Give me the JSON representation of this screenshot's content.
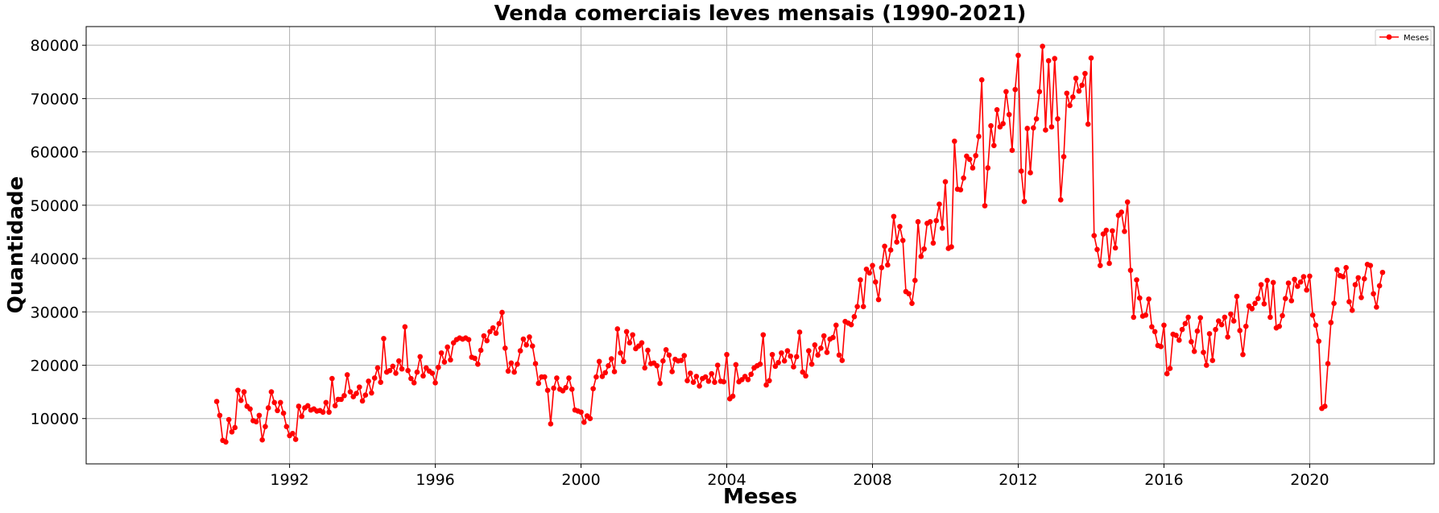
{
  "chart_data": {
    "type": "line",
    "title": "Venda comerciais leves mensais (1990-2021)",
    "xlabel": "Meses",
    "ylabel": "Quantidade",
    "x_tick_labels": [
      "1992",
      "1996",
      "2000",
      "2004",
      "2008",
      "2012",
      "2016",
      "2020"
    ],
    "y_tick_labels": [
      "10000",
      "20000",
      "30000",
      "40000",
      "50000",
      "60000",
      "70000",
      "80000"
    ],
    "x_range": [
      "1986-06",
      "2023-06"
    ],
    "ylim": [
      1500,
      83500
    ],
    "grid": true,
    "legend_position": "top-right",
    "marker": "circle",
    "line_color": "#ff0000",
    "series": [
      {
        "name": "Meses",
        "start": "1990-01",
        "frequency": "monthly",
        "values": [
          13200,
          10600,
          5900,
          5600,
          9800,
          7500,
          8300,
          15300,
          13400,
          15000,
          12300,
          11800,
          9600,
          9400,
          10600,
          6000,
          8500,
          12000,
          15000,
          13000,
          11500,
          13000,
          11000,
          8500,
          6800,
          7200,
          6100,
          12300,
          10400,
          12000,
          12400,
          11600,
          11800,
          11400,
          11500,
          11200,
          13000,
          11200,
          17500,
          12400,
          13600,
          13600,
          14300,
          18200,
          15000,
          14100,
          14700,
          15900,
          13300,
          14400,
          17000,
          14800,
          17600,
          19500,
          16800,
          25000,
          18700,
          19000,
          19800,
          18500,
          20800,
          19300,
          27200,
          19000,
          17500,
          16700,
          18700,
          21600,
          18000,
          19500,
          18900,
          18500,
          16700,
          19600,
          22300,
          20600,
          23400,
          21000,
          24200,
          24800,
          25100,
          24900,
          25100,
          24800,
          21500,
          21300,
          20200,
          22800,
          25500,
          24600,
          26300,
          27000,
          26000,
          27800,
          29900,
          23200,
          18900,
          20400,
          18700,
          20200,
          22700,
          24900,
          23800,
          25300,
          23600,
          20300,
          16600,
          17800,
          17800,
          15300,
          9000,
          15700,
          17600,
          15500,
          15200,
          15800,
          17600,
          15500,
          11600,
          11400,
          11200,
          9300,
          10500,
          10000,
          15600,
          17800,
          20700,
          17900,
          18600,
          19900,
          21200,
          18800,
          26800,
          22300,
          20700,
          26300,
          24200,
          25700,
          23100,
          23600,
          24200,
          19500,
          22800,
          20300,
          20400,
          19900,
          16600,
          20800,
          22900,
          21900,
          18800,
          21100,
          20800,
          20900,
          21800,
          17100,
          18500,
          16800,
          17900,
          16100,
          17500,
          17800,
          17000,
          18400,
          16800,
          20000,
          17000,
          16900,
          22000,
          13700,
          14200,
          20100,
          16900,
          17300,
          17900,
          17300,
          18300,
          19500,
          19900,
          20200,
          25700,
          16300,
          17100,
          22000,
          19800,
          20500,
          22300,
          20800,
          22700,
          21700,
          19700,
          21600,
          26200,
          18700,
          18000,
          22700,
          20200,
          23800,
          21900,
          23200,
          25500,
          22400,
          24900,
          25200,
          27500,
          21900,
          20900,
          28200,
          27900,
          27600,
          29100,
          31000,
          36000,
          31000,
          38000,
          37300,
          38700,
          35600,
          32300,
          38300,
          42300,
          38800,
          41600,
          47900,
          43100,
          46000,
          43400,
          33800,
          33400,
          31600,
          35900,
          46900,
          40400,
          41800,
          46600,
          46900,
          42900,
          47100,
          50200,
          45700,
          54400,
          41900,
          42200,
          62000,
          53000,
          52900,
          55100,
          59200,
          58600,
          57000,
          59300,
          62900,
          73500,
          49900,
          57000,
          64900,
          61200,
          67900,
          64700,
          65300,
          71300,
          67000,
          60300,
          71700,
          78100,
          56400,
          50700,
          64400,
          56100,
          64500,
          66200,
          71300,
          79800,
          64100,
          77100,
          64700,
          77500,
          66200,
          51000,
          59100,
          71000,
          68700,
          70300,
          73800,
          71400,
          72500,
          74700,
          65200,
          77600,
          44300,
          41700,
          38700,
          44600,
          45300,
          39100,
          45200,
          42000,
          48100,
          48700,
          45100,
          50600,
          37800,
          29000,
          36000,
          32600,
          29200,
          29400,
          32400,
          27200,
          26300,
          23700,
          23500,
          27500,
          18400,
          19400,
          25800,
          25600,
          24700,
          26700,
          27800,
          29000,
          24400,
          22600,
          26400,
          28900,
          22400,
          20000,
          25900,
          20900,
          26700,
          28300,
          27600,
          29000,
          25300,
          29600,
          28300,
          32900,
          26500,
          22000,
          27300,
          31100,
          30600,
          31600,
          32500,
          35100,
          31500,
          35900,
          29000,
          35500,
          27000,
          27300,
          29300,
          32500,
          35400,
          32100,
          36100,
          34800,
          35600,
          36600,
          34100,
          36700,
          29400,
          27500,
          24500,
          11900,
          12300,
          20300,
          28000,
          31600,
          37900,
          36800,
          36600,
          38300,
          31900,
          30300,
          35100,
          36400,
          32700,
          36200,
          38900,
          38700,
          33400,
          30900,
          34900,
          37400
        ]
      }
    ]
  }
}
